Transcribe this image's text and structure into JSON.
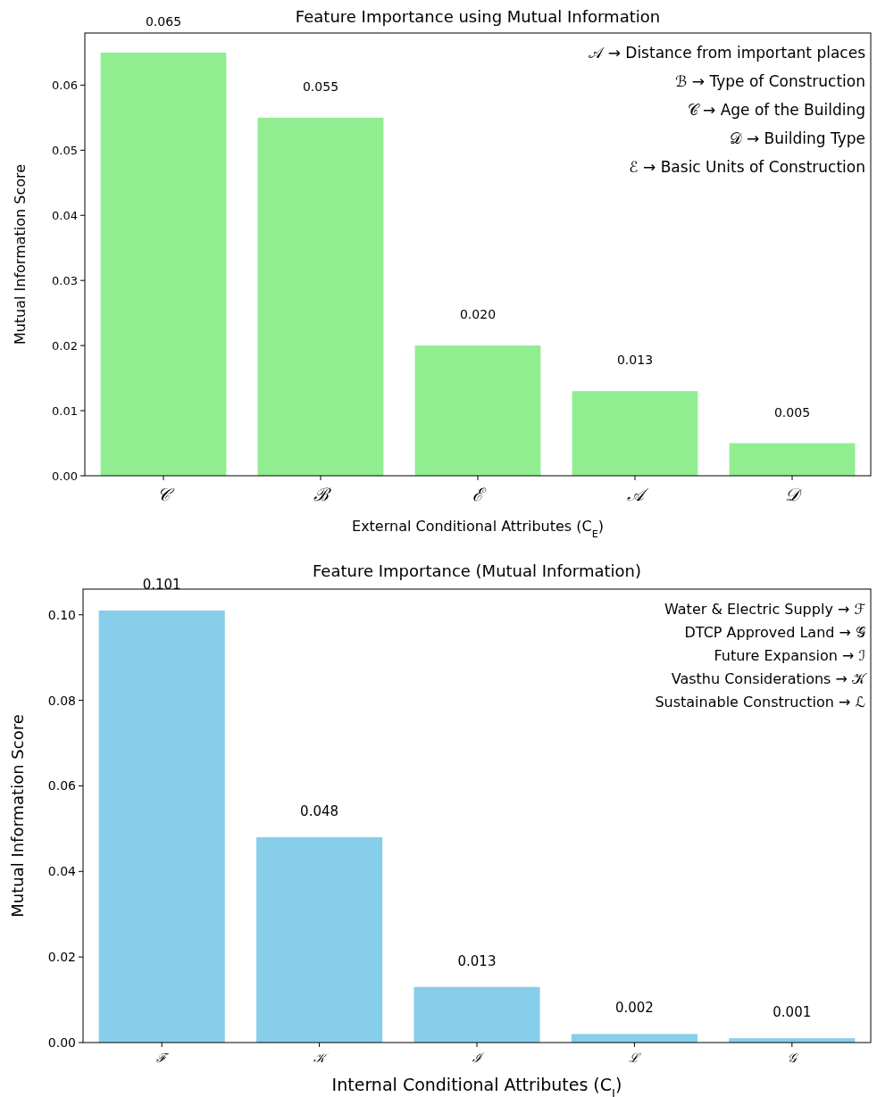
{
  "chart_data": [
    {
      "type": "bar",
      "title": "Feature Importance using Mutual Information",
      "xlabel": "External Conditional Attributes (C$_{E}$)",
      "ylabel": "Mutual Information Score",
      "categories": [
        "𝒞",
        "ℬ",
        "ℰ",
        "𝒜",
        "𝒟"
      ],
      "values": [
        0.065,
        0.055,
        0.02,
        0.013,
        0.005
      ],
      "value_labels": [
        "0.065",
        "0.055",
        "0.020",
        "0.013",
        "0.005"
      ],
      "color": "#90ee90",
      "ylim": [
        0,
        0.068
      ],
      "yticks": [
        {
          "value": 0,
          "label": "0.00"
        },
        {
          "value": 0.01,
          "label": "0.01"
        },
        {
          "value": 0.02,
          "label": "0.02"
        },
        {
          "value": 0.03,
          "label": "0.03"
        },
        {
          "value": 0.04,
          "label": "0.04"
        },
        {
          "value": 0.05,
          "label": "0.05"
        },
        {
          "value": 0.06,
          "label": "0.06"
        }
      ],
      "grid": false,
      "annotations": [
        "𝒜 → Distance from important places",
        "ℬ → Type of Construction",
        "𝒞 → Age of the Building",
        "𝒟 → Building Type",
        "ℰ → Basic Units of Construction"
      ]
    },
    {
      "type": "bar",
      "title": "Feature Importance (Mutual Information)",
      "xlabel": "Internal Conditional Attributes (C$_{I}$)",
      "ylabel": "Mutual Information Score",
      "categories": [
        "ℱ",
        "𝒦",
        "ℐ",
        "ℒ",
        "𝒢"
      ],
      "values": [
        0.101,
        0.048,
        0.013,
        0.002,
        0.001
      ],
      "value_labels": [
        "0.101",
        "0.048",
        "0.013",
        "0.002",
        "0.001"
      ],
      "color": "#87ceeb",
      "ylim": [
        0,
        0.106
      ],
      "yticks": [
        {
          "value": 0,
          "label": "0.00"
        },
        {
          "value": 0.02,
          "label": "0.02"
        },
        {
          "value": 0.04,
          "label": "0.04"
        },
        {
          "value": 0.06,
          "label": "0.06"
        },
        {
          "value": 0.08,
          "label": "0.08"
        },
        {
          "value": 0.1,
          "label": "0.10"
        }
      ],
      "grid": false,
      "annotations": [
        "Water & Electric Supply  →  ℱ",
        "DTCP Approved Land  →  𝒢",
        "Future Expansion  →  ℐ",
        "Vasthu Considerations  →  𝒦",
        "Sustainable Construction  →  ℒ"
      ]
    }
  ]
}
